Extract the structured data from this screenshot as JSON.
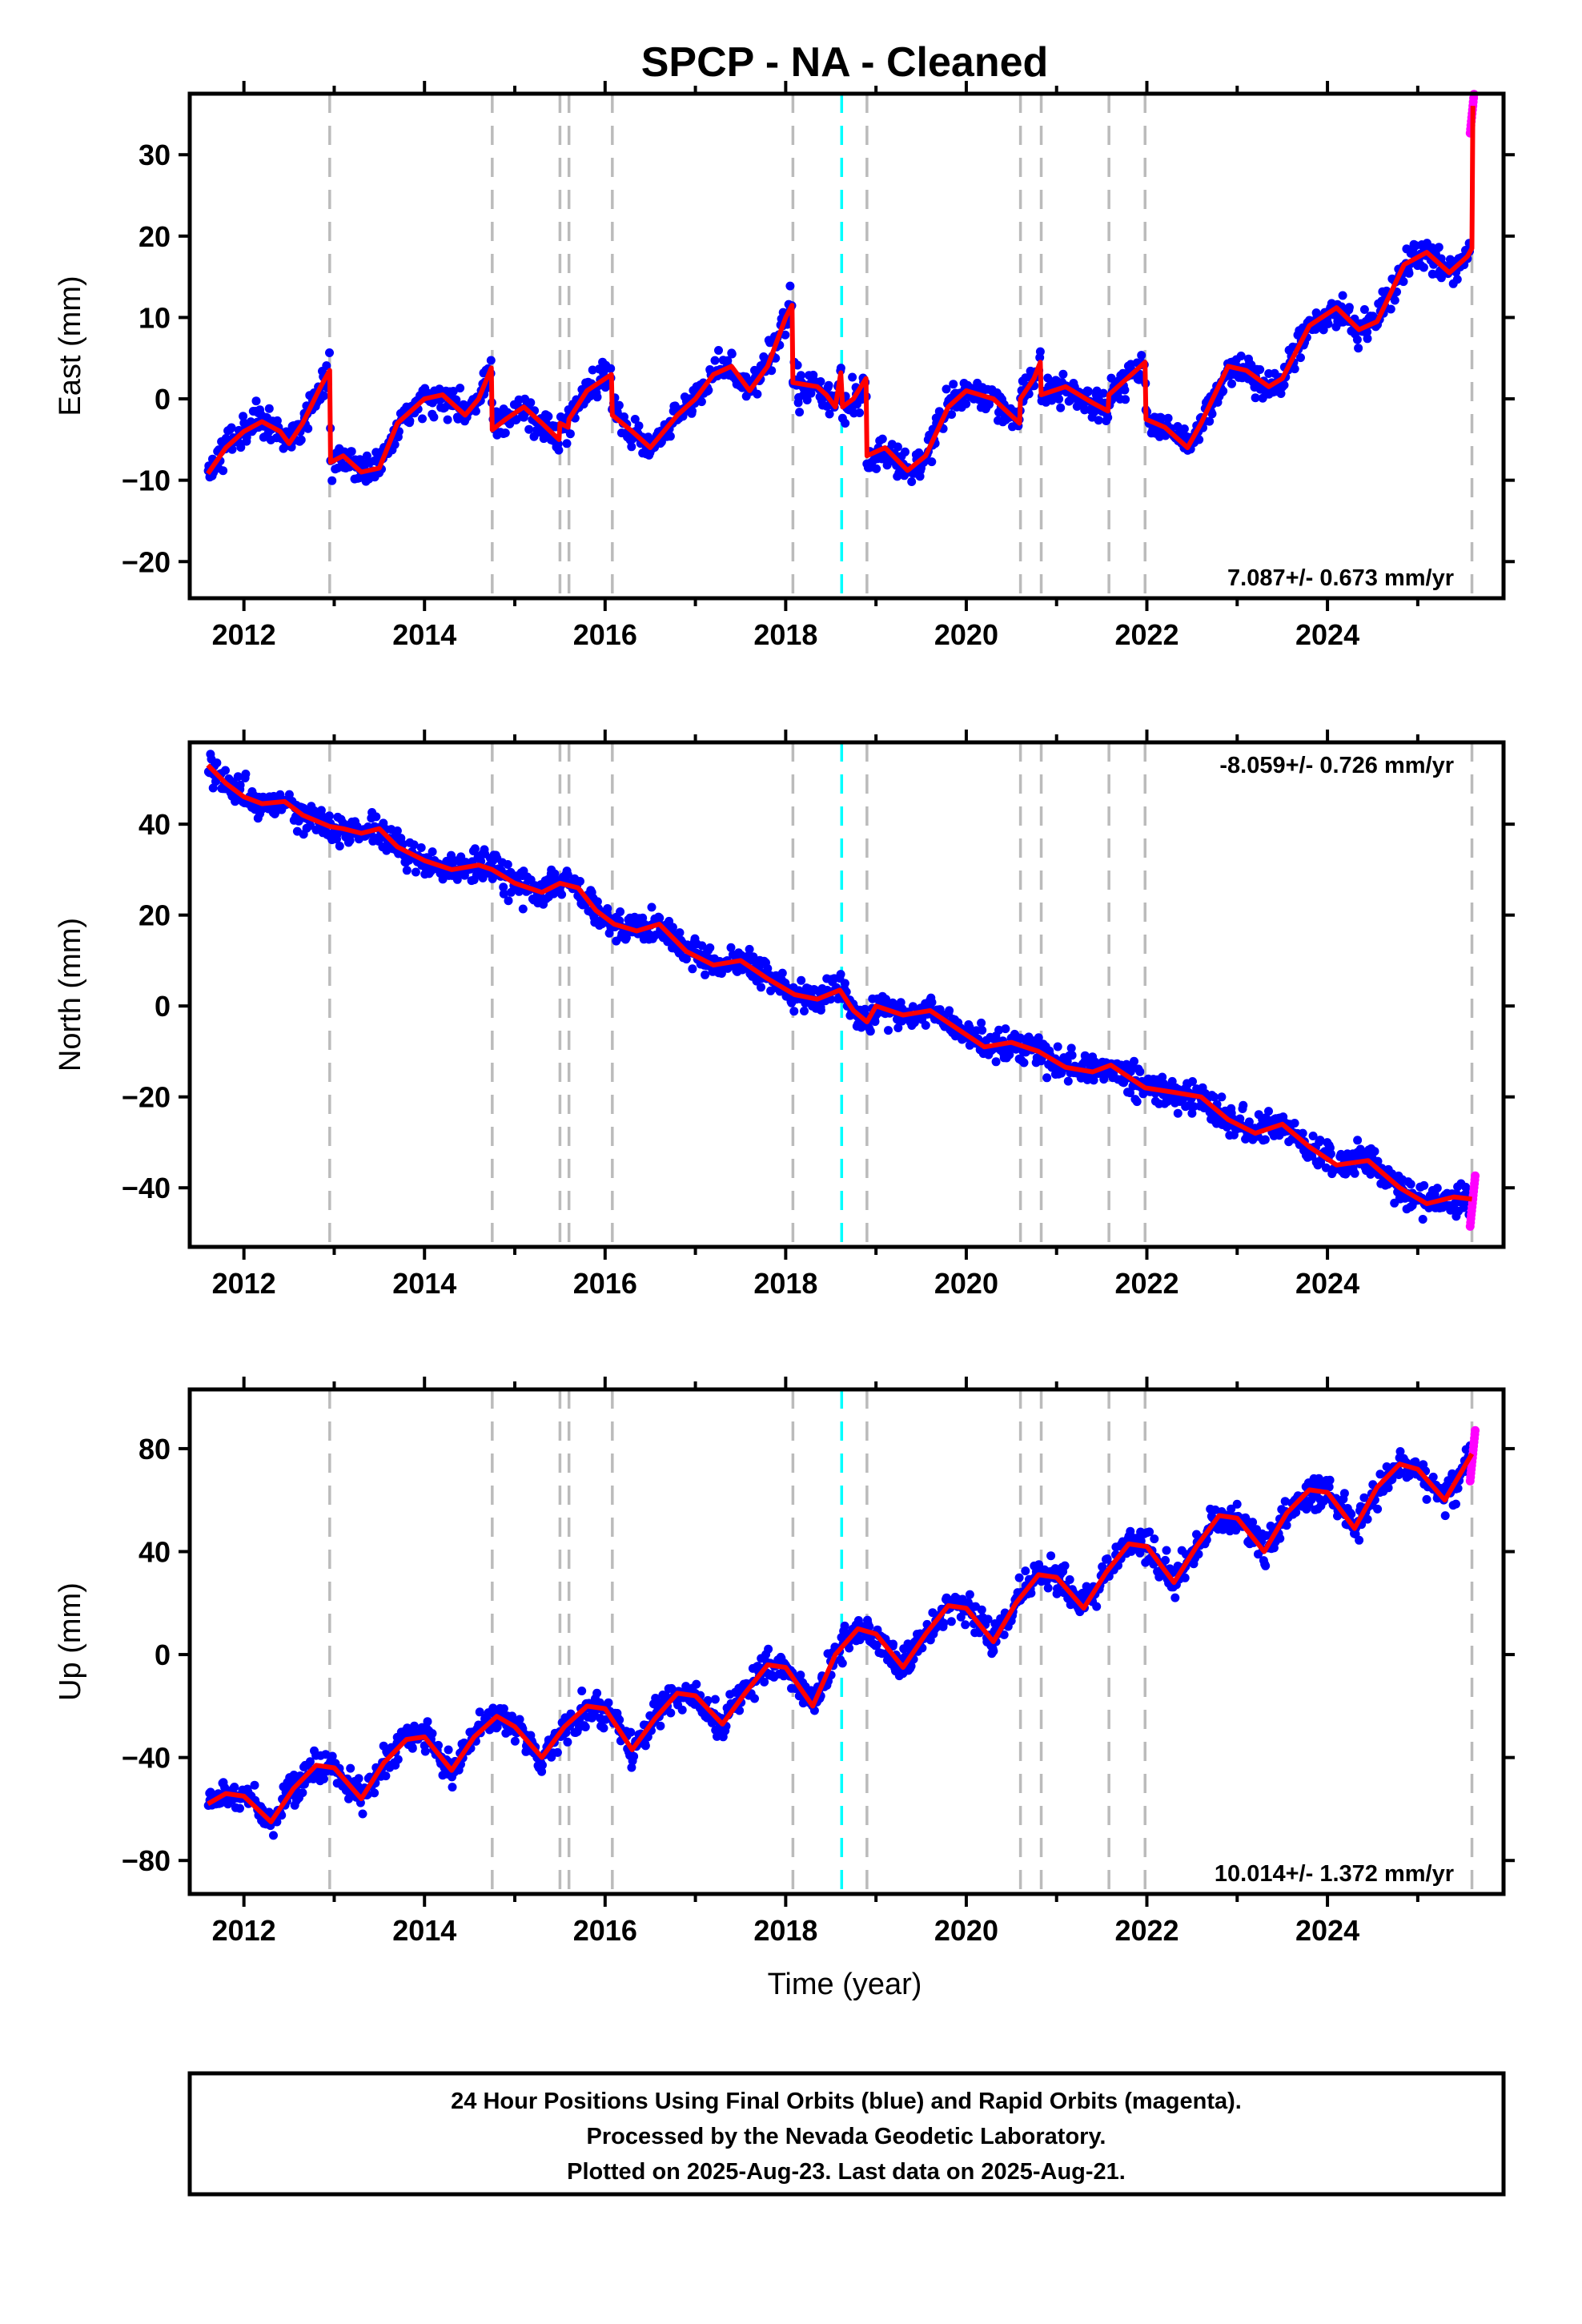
{
  "chart_data": {
    "type": "scatter",
    "title": "SPCP  - NA - Cleaned",
    "xlabel": "Time (year)",
    "xlim": [
      2011.4,
      2025.95
    ],
    "x_ticks": [
      2012,
      2014,
      2016,
      2018,
      2020,
      2022,
      2024
    ],
    "x_tick_labels": [
      "2012",
      "2014",
      "2016",
      "2018",
      "2020",
      "2022",
      "2024"
    ],
    "event_lines_gray": [
      2012.95,
      2014.75,
      2015.5,
      2015.6,
      2016.08,
      2018.08,
      2018.9,
      2020.6,
      2020.83,
      2021.58,
      2021.98,
      2025.6
    ],
    "event_lines_cyan": [
      2018.62
    ],
    "series_colors": {
      "final": "#0000ff",
      "rapid": "#ff00ff",
      "model": "#ff0000",
      "event_gray": "#bbbbbb",
      "event_cyan": "#00ffff"
    },
    "data_start": 2011.6,
    "rapid_start": 2025.58,
    "data_end": 2025.64,
    "panels": [
      {
        "key": "east",
        "ylabel": "East (mm)",
        "ylim": [
          -24.5,
          37.5
        ],
        "y_ticks": [
          -20,
          -10,
          0,
          10,
          20,
          30
        ],
        "y_tick_labels": [
          "−20",
          "−10",
          "0",
          "10",
          "20",
          "30"
        ],
        "rate_text": "7.087+/- 0.673 mm/yr",
        "rate_position": "bottom-right",
        "model_curve": [
          [
            2011.6,
            -9.2
          ],
          [
            2011.8,
            -6
          ],
          [
            2012.0,
            -4
          ],
          [
            2012.2,
            -2.8
          ],
          [
            2012.4,
            -4
          ],
          [
            2012.5,
            -5.5
          ],
          [
            2012.65,
            -3
          ],
          [
            2012.85,
            1.5
          ],
          [
            2012.95,
            3.5
          ],
          [
            2012.96,
            -7.8
          ],
          [
            2013.1,
            -7
          ],
          [
            2013.3,
            -9
          ],
          [
            2013.5,
            -8.5
          ],
          [
            2013.7,
            -3
          ],
          [
            2014.0,
            0
          ],
          [
            2014.2,
            0.5
          ],
          [
            2014.45,
            -2
          ],
          [
            2014.6,
            0
          ],
          [
            2014.74,
            3.8
          ],
          [
            2014.75,
            -3.8
          ],
          [
            2014.9,
            -2.5
          ],
          [
            2015.1,
            -1
          ],
          [
            2015.3,
            -3
          ],
          [
            2015.49,
            -5
          ],
          [
            2015.5,
            -3
          ],
          [
            2015.59,
            -3.5
          ],
          [
            2015.6,
            -2.5
          ],
          [
            2015.8,
            1
          ],
          [
            2016.07,
            3
          ],
          [
            2016.08,
            -2
          ],
          [
            2016.3,
            -4
          ],
          [
            2016.5,
            -6
          ],
          [
            2016.8,
            -2
          ],
          [
            2017.0,
            0
          ],
          [
            2017.2,
            3
          ],
          [
            2017.4,
            4
          ],
          [
            2017.6,
            1
          ],
          [
            2017.8,
            4
          ],
          [
            2018.0,
            10
          ],
          [
            2018.07,
            11.5
          ],
          [
            2018.08,
            2
          ],
          [
            2018.35,
            1.5
          ],
          [
            2018.45,
            0.5
          ],
          [
            2018.55,
            -1
          ],
          [
            2018.61,
            3.2
          ],
          [
            2018.63,
            -1
          ],
          [
            2018.75,
            0
          ],
          [
            2018.89,
            2.5
          ],
          [
            2018.9,
            -7
          ],
          [
            2019.1,
            -6
          ],
          [
            2019.35,
            -8.8
          ],
          [
            2019.55,
            -7
          ],
          [
            2019.8,
            -1
          ],
          [
            2020.0,
            1
          ],
          [
            2020.3,
            0
          ],
          [
            2020.59,
            -3
          ],
          [
            2020.6,
            0
          ],
          [
            2020.75,
            2.5
          ],
          [
            2020.82,
            4.5
          ],
          [
            2020.83,
            0.5
          ],
          [
            2021.1,
            1.5
          ],
          [
            2021.4,
            -0.5
          ],
          [
            2021.57,
            -1.5
          ],
          [
            2021.58,
            0.5
          ],
          [
            2021.98,
            4.5
          ],
          [
            2021.99,
            -2.5
          ],
          [
            2022.2,
            -3.5
          ],
          [
            2022.45,
            -6
          ],
          [
            2022.6,
            -3
          ],
          [
            2022.9,
            4
          ],
          [
            2023.1,
            3.5
          ],
          [
            2023.35,
            1.5
          ],
          [
            2023.5,
            2.5
          ],
          [
            2023.8,
            9
          ],
          [
            2024.1,
            11.2
          ],
          [
            2024.35,
            8.5
          ],
          [
            2024.55,
            9.5
          ],
          [
            2024.85,
            16.5
          ],
          [
            2025.1,
            18
          ],
          [
            2025.35,
            15.5
          ],
          [
            2025.55,
            17.5
          ],
          [
            2025.6,
            18.5
          ],
          [
            2025.61,
            36
          ]
        ]
      },
      {
        "key": "north",
        "ylabel": "North (mm)",
        "ylim": [
          -53,
          58
        ],
        "y_ticks": [
          -40,
          -20,
          0,
          20,
          40
        ],
        "y_tick_labels": [
          "−40",
          "−20",
          "0",
          "20",
          "40"
        ],
        "rate_text": "-8.059+/- 0.726 mm/yr",
        "rate_position": "top-right",
        "model_curve": [
          [
            2011.6,
            53
          ],
          [
            2011.8,
            49
          ],
          [
            2012.0,
            46
          ],
          [
            2012.2,
            44.5
          ],
          [
            2012.45,
            45
          ],
          [
            2012.65,
            42
          ],
          [
            2012.95,
            39.5
          ],
          [
            2013.1,
            39
          ],
          [
            2013.3,
            38
          ],
          [
            2013.5,
            39
          ],
          [
            2013.7,
            35
          ],
          [
            2014.0,
            32
          ],
          [
            2014.3,
            30
          ],
          [
            2014.6,
            31
          ],
          [
            2014.75,
            30
          ],
          [
            2015.0,
            27
          ],
          [
            2015.3,
            25
          ],
          [
            2015.5,
            27
          ],
          [
            2015.7,
            26
          ],
          [
            2015.9,
            21
          ],
          [
            2016.1,
            18
          ],
          [
            2016.35,
            16.5
          ],
          [
            2016.6,
            18
          ],
          [
            2016.9,
            12
          ],
          [
            2017.2,
            9
          ],
          [
            2017.5,
            10
          ],
          [
            2017.8,
            6
          ],
          [
            2018.1,
            2.5
          ],
          [
            2018.35,
            1.5
          ],
          [
            2018.6,
            3.5
          ],
          [
            2018.75,
            -1
          ],
          [
            2018.9,
            -3.5
          ],
          [
            2019.0,
            0
          ],
          [
            2019.3,
            -2
          ],
          [
            2019.6,
            -1
          ],
          [
            2019.9,
            -5
          ],
          [
            2020.2,
            -9
          ],
          [
            2020.5,
            -8
          ],
          [
            2020.8,
            -10
          ],
          [
            2021.1,
            -13.5
          ],
          [
            2021.4,
            -14.5
          ],
          [
            2021.6,
            -13
          ],
          [
            2021.98,
            -18
          ],
          [
            2022.3,
            -19
          ],
          [
            2022.6,
            -20
          ],
          [
            2022.9,
            -25
          ],
          [
            2023.2,
            -28
          ],
          [
            2023.5,
            -26
          ],
          [
            2023.8,
            -31
          ],
          [
            2024.1,
            -35
          ],
          [
            2024.45,
            -34
          ],
          [
            2024.8,
            -40
          ],
          [
            2025.1,
            -43.5
          ],
          [
            2025.4,
            -42
          ],
          [
            2025.6,
            -42.5
          ]
        ]
      },
      {
        "key": "up",
        "ylabel": "Up (mm)",
        "ylim": [
          -93,
          103
        ],
        "y_ticks": [
          -80,
          -40,
          0,
          40,
          80
        ],
        "y_tick_labels": [
          "−80",
          "−40",
          "0",
          "40",
          "80"
        ],
        "rate_text": "10.014+/- 1.372 mm/yr",
        "rate_position": "bottom-right",
        "model_curve": [
          [
            2011.6,
            -58
          ],
          [
            2011.8,
            -54
          ],
          [
            2012.0,
            -55
          ],
          [
            2012.3,
            -65
          ],
          [
            2012.55,
            -52
          ],
          [
            2012.8,
            -43
          ],
          [
            2013.0,
            -44
          ],
          [
            2013.3,
            -56
          ],
          [
            2013.55,
            -42
          ],
          [
            2013.8,
            -33
          ],
          [
            2014.0,
            -32
          ],
          [
            2014.3,
            -45
          ],
          [
            2014.55,
            -32
          ],
          [
            2014.8,
            -24
          ],
          [
            2015.0,
            -28
          ],
          [
            2015.3,
            -40
          ],
          [
            2015.55,
            -28
          ],
          [
            2015.8,
            -20
          ],
          [
            2016.0,
            -21
          ],
          [
            2016.3,
            -37
          ],
          [
            2016.55,
            -25
          ],
          [
            2016.8,
            -15
          ],
          [
            2017.0,
            -16
          ],
          [
            2017.3,
            -27
          ],
          [
            2017.55,
            -15
          ],
          [
            2017.8,
            -4
          ],
          [
            2018.0,
            -5
          ],
          [
            2018.3,
            -20
          ],
          [
            2018.55,
            0
          ],
          [
            2018.8,
            10
          ],
          [
            2019.0,
            8
          ],
          [
            2019.3,
            -5
          ],
          [
            2019.55,
            8
          ],
          [
            2019.8,
            19
          ],
          [
            2020.0,
            18
          ],
          [
            2020.3,
            5
          ],
          [
            2020.55,
            20
          ],
          [
            2020.8,
            31
          ],
          [
            2021.0,
            30
          ],
          [
            2021.3,
            18
          ],
          [
            2021.55,
            32
          ],
          [
            2021.8,
            43
          ],
          [
            2022.0,
            42
          ],
          [
            2022.3,
            28
          ],
          [
            2022.55,
            42
          ],
          [
            2022.8,
            54
          ],
          [
            2023.0,
            53
          ],
          [
            2023.3,
            40
          ],
          [
            2023.55,
            55
          ],
          [
            2023.8,
            64
          ],
          [
            2024.0,
            63
          ],
          [
            2024.3,
            49
          ],
          [
            2024.55,
            65
          ],
          [
            2024.8,
            74
          ],
          [
            2025.0,
            72
          ],
          [
            2025.3,
            60
          ],
          [
            2025.6,
            78
          ]
        ]
      }
    ]
  },
  "footer": {
    "line1": "24 Hour Positions Using Final Orbits (blue) and Rapid Orbits (magenta).",
    "line2": "Processed by the Nevada Geodetic Laboratory.",
    "line3": "Plotted on 2025-Aug-23. Last data on 2025-Aug-21."
  }
}
